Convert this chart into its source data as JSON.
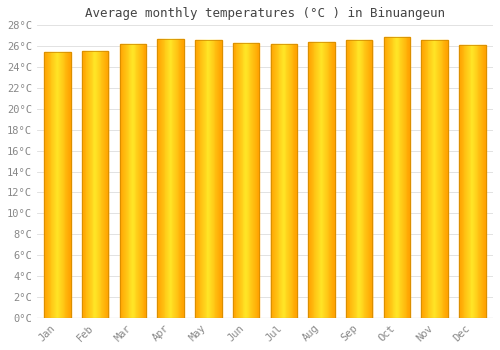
{
  "title": "Average monthly temperatures (°C ) in Binuangeun",
  "months": [
    "Jan",
    "Feb",
    "Mar",
    "Apr",
    "May",
    "Jun",
    "Jul",
    "Aug",
    "Sep",
    "Oct",
    "Nov",
    "Dec"
  ],
  "values": [
    25.4,
    25.5,
    26.2,
    26.7,
    26.6,
    26.3,
    26.2,
    26.4,
    26.6,
    26.9,
    26.6,
    26.1
  ],
  "ylim": [
    0,
    28
  ],
  "yticks": [
    0,
    2,
    4,
    6,
    8,
    10,
    12,
    14,
    16,
    18,
    20,
    22,
    24,
    26,
    28
  ],
  "bar_color_left": "#FFA500",
  "bar_color_center": "#FFD050",
  "bar_color_right": "#FFA000",
  "background_color": "#FFFFFF",
  "grid_color": "#DDDDDD",
  "title_color": "#444444",
  "tick_color": "#888888",
  "title_fontsize": 9,
  "tick_fontsize": 7.5
}
